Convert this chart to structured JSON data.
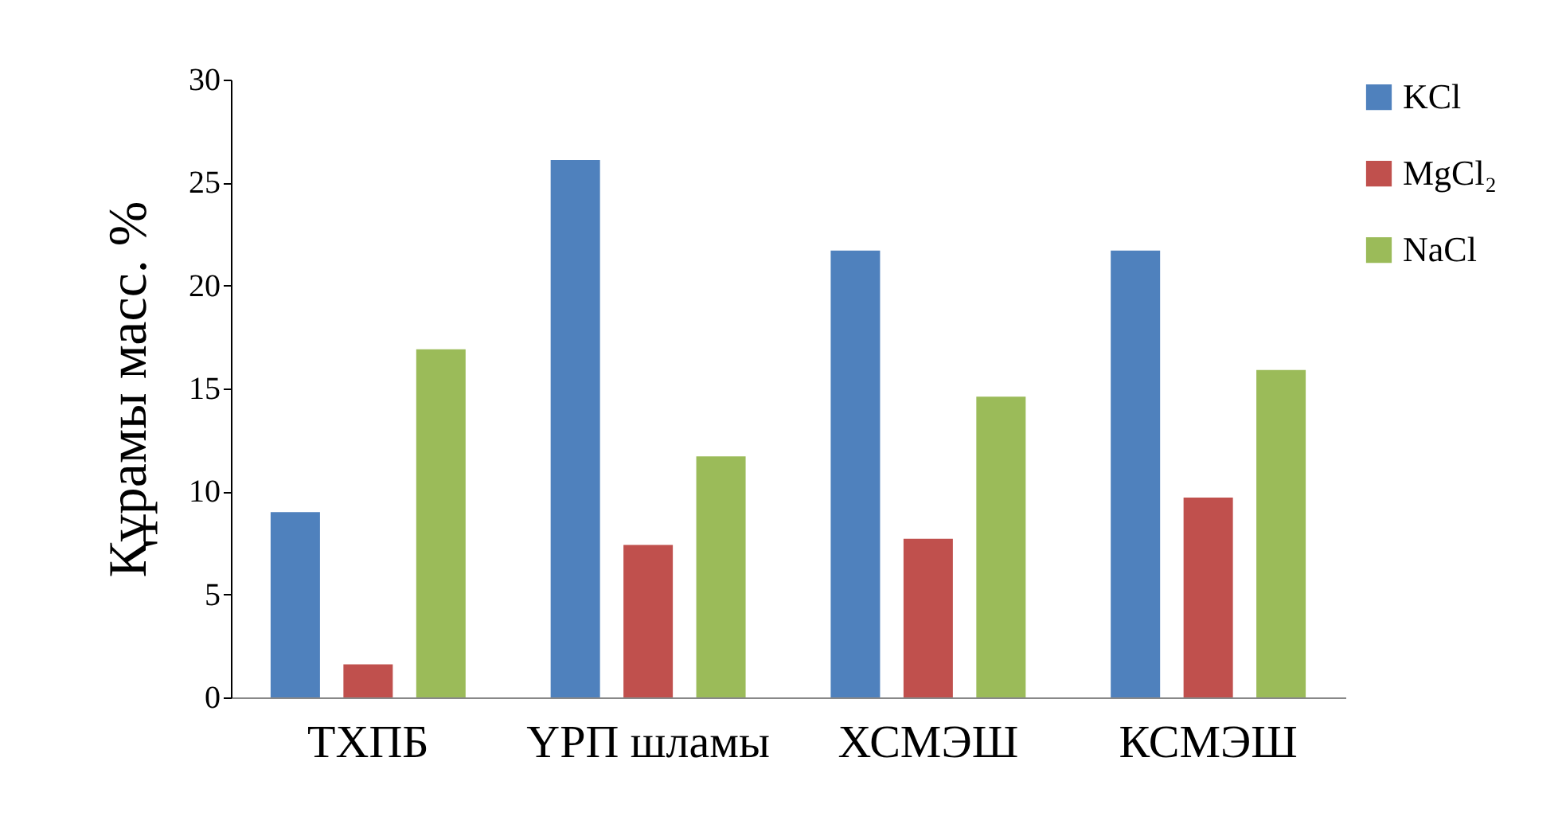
{
  "chart_data": {
    "type": "bar",
    "ylabel": "Құрамы масс. %",
    "categories": [
      "ТХПБ",
      "ҮРП шламы",
      "ХСМЭШ",
      "КСМЭШ"
    ],
    "series": [
      {
        "name": "KCl",
        "color": "#4f81bd",
        "values": [
          9.0,
          26.1,
          21.7,
          21.7
        ]
      },
      {
        "name": "MgCl₂",
        "color": "#c0504d",
        "values": [
          1.6,
          7.4,
          7.7,
          9.7
        ]
      },
      {
        "name": "NaCl",
        "color": "#9bbb59",
        "values": [
          16.9,
          11.7,
          14.6,
          15.9
        ]
      }
    ],
    "ylim": [
      0,
      30
    ],
    "yticks": [
      0,
      5,
      10,
      15,
      20,
      25,
      30
    ],
    "grid": false,
    "legend": "top right"
  }
}
